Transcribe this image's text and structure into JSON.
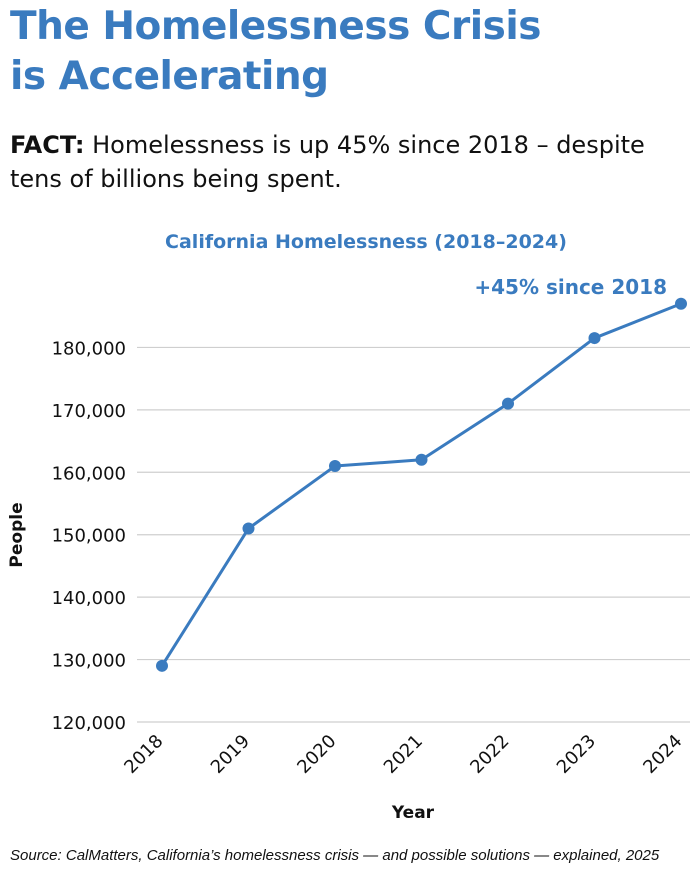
{
  "headline": {
    "line1": "The Homelessness Crisis",
    "line2": "is Accelerating"
  },
  "fact": {
    "label": "FACT:",
    "text": " Homelessness is up 45% since 2018 – despite tens of billions being spent."
  },
  "colors": {
    "accent": "#3a7bbf",
    "grid": "#cfcfcf",
    "text": "#111111"
  },
  "chart_data": {
    "type": "line",
    "title": "California Homelessness (2018–2024)",
    "xlabel": "Year",
    "ylabel": "People",
    "x": [
      "2018",
      "2019",
      "2020",
      "2021",
      "2022",
      "2023",
      "2024"
    ],
    "values": [
      129000,
      151000,
      161000,
      162000,
      171000,
      181500,
      187000
    ],
    "ylim": [
      120000,
      190000
    ],
    "yticks": [
      120000,
      130000,
      140000,
      150000,
      160000,
      170000,
      180000
    ],
    "ytick_labels": [
      "120,000",
      "130,000",
      "140,000",
      "150,000",
      "160,000",
      "170,000",
      "180,000"
    ],
    "grid": true,
    "annotation": "+45% since 2018"
  },
  "source": "Source: CalMatters, California’s homelessness crisis — and possible solutions — explained, 2025"
}
